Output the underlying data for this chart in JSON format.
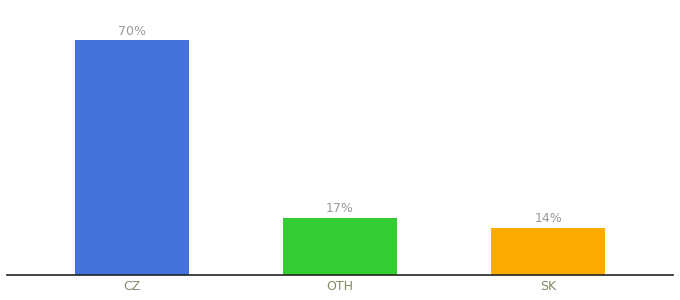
{
  "categories": [
    "CZ",
    "OTH",
    "SK"
  ],
  "values": [
    70,
    17,
    14
  ],
  "bar_colors": [
    "#4472db",
    "#33cc33",
    "#ffaa00"
  ],
  "labels": [
    "70%",
    "17%",
    "14%"
  ],
  "ylim": [
    0,
    80
  ],
  "background_color": "#ffffff",
  "label_color": "#999999",
  "label_fontsize": 9,
  "tick_fontsize": 9,
  "tick_color": "#888866",
  "bar_width": 0.55
}
